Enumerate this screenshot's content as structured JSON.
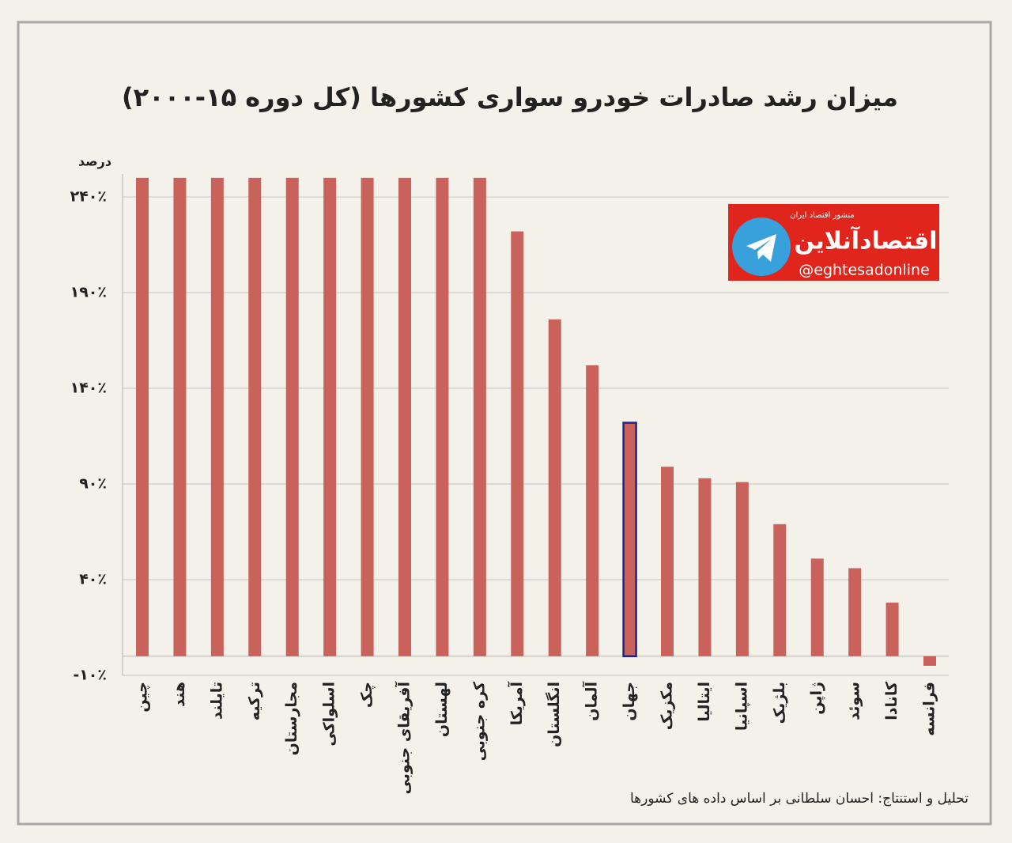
{
  "chart_data": {
    "type": "bar",
    "title": "میزان رشد صادرات خودرو سواری کشورها (کل دوره ۱۵-۲۰۰۰)",
    "ylabel": "درصد",
    "categories": [
      "چین",
      "هند",
      "تایلند",
      "ترکیه",
      "مجارستان",
      "اسلواکی",
      "چک",
      "آفریقای جنوبی",
      "لهستان",
      "کره جنوبی",
      "آمریکا",
      "انگلستان",
      "آلمان",
      "جهان",
      "مکزیک",
      "ایتالیا",
      "اسپانیا",
      "بلژیک",
      "ژاپن",
      "سوئد",
      "کانادا",
      "فرانسه"
    ],
    "values": [
      250,
      250,
      250,
      250,
      250,
      250,
      250,
      250,
      250,
      250,
      222,
      176,
      152,
      122,
      99,
      93,
      91,
      69,
      51,
      46,
      28,
      -5
    ],
    "color": "#c9625b",
    "highlight": {
      "category": "جهان",
      "edgecolor": "#1c2490"
    },
    "ylim": [
      -10,
      252
    ],
    "yticks": [
      {
        "value": -10,
        "label": "-۱۰٪"
      },
      {
        "value": 40,
        "label": "۴۰٪"
      },
      {
        "value": 90,
        "label": "۹۰٪"
      },
      {
        "value": 140,
        "label": "۱۴۰٪"
      },
      {
        "value": 190,
        "label": "۱۹۰٪"
      },
      {
        "value": 240,
        "label": "۲۴۰٪"
      }
    ],
    "grid": true,
    "source": "تحلیل و استنتاج: احسان سلطانی بر اساس داده های کشورها"
  },
  "logo": {
    "tagline": "منشور اقتصاد ایران",
    "name": "اقتصادآنلاین",
    "handle": "@eghtesadonline"
  }
}
